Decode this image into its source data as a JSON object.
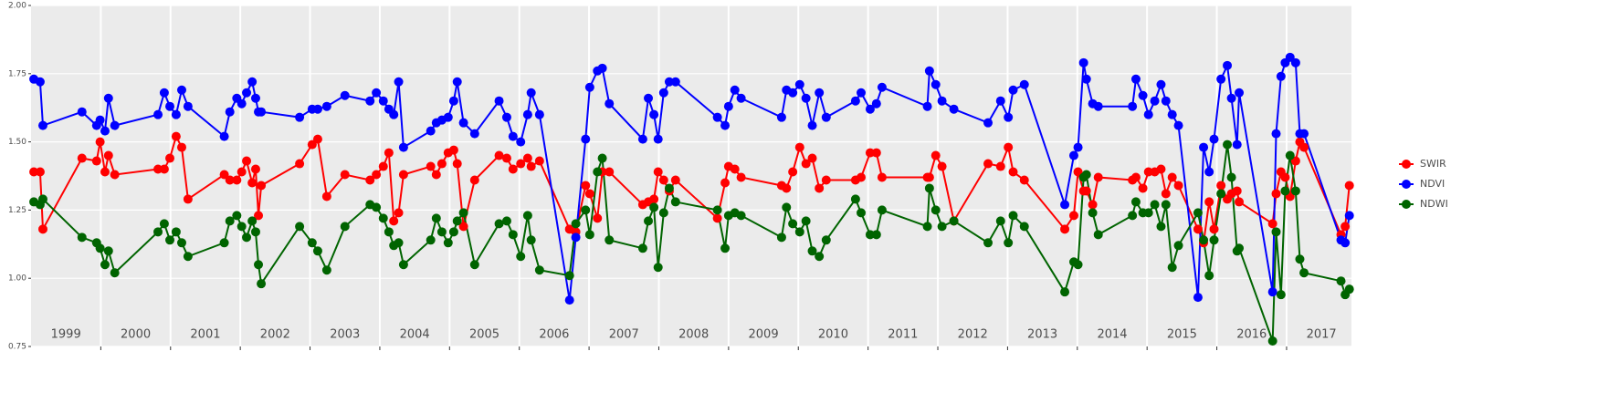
{
  "chart_data": {
    "type": "line",
    "x": [
      1999.04,
      1999.13,
      1999.17,
      1999.73,
      1999.94,
      1999.99,
      2000.06,
      2000.11,
      2000.2,
      2000.82,
      2000.91,
      2000.99,
      2001.08,
      2001.16,
      2001.25,
      2001.77,
      2001.85,
      2001.95,
      2002.02,
      2002.09,
      2002.17,
      2002.22,
      2002.26,
      2002.3,
      2002.85,
      2003.03,
      2003.11,
      2003.24,
      2003.5,
      2003.86,
      2003.95,
      2004.05,
      2004.13,
      2004.2,
      2004.27,
      2004.34,
      2004.73,
      2004.81,
      2004.89,
      2004.98,
      2005.06,
      2005.11,
      2005.2,
      2005.36,
      2005.71,
      2005.82,
      2005.91,
      2006.02,
      2006.12,
      2006.17,
      2006.29,
      2006.72,
      2006.81,
      2006.95,
      2007.01,
      2007.12,
      2007.19,
      2007.29,
      2007.77,
      2007.85,
      2007.93,
      2007.99,
      2008.07,
      2008.15,
      2008.24,
      2008.84,
      2008.95,
      2009.0,
      2009.09,
      2009.18,
      2009.76,
      2009.83,
      2009.92,
      2010.02,
      2010.11,
      2010.2,
      2010.3,
      2010.4,
      2010.82,
      2010.9,
      2011.03,
      2011.12,
      2011.2,
      2011.85,
      2011.88,
      2011.97,
      2012.06,
      2012.23,
      2012.72,
      2012.9,
      2013.01,
      2013.08,
      2013.24,
      2013.82,
      2013.95,
      2014.01,
      2014.09,
      2014.13,
      2014.22,
      2014.3,
      2014.79,
      2014.84,
      2014.94,
      2015.02,
      2015.11,
      2015.2,
      2015.27,
      2015.36,
      2015.45,
      2015.73,
      2015.81,
      2015.89,
      2015.96,
      2016.06,
      2016.15,
      2016.21,
      2016.29,
      2016.32,
      2016.8,
      2016.85,
      2016.92,
      2016.98,
      2017.05,
      2017.13,
      2017.19,
      2017.25,
      2017.78,
      2017.84,
      2017.9
    ],
    "series": [
      {
        "name": "SWIR",
        "color": "#ff0000",
        "values": [
          1.39,
          1.39,
          1.18,
          1.44,
          1.43,
          1.5,
          1.39,
          1.45,
          1.38,
          1.4,
          1.4,
          1.44,
          1.52,
          1.48,
          1.29,
          1.38,
          1.36,
          1.36,
          1.39,
          1.43,
          1.35,
          1.4,
          1.23,
          1.34,
          1.42,
          1.49,
          1.51,
          1.3,
          1.38,
          1.36,
          1.38,
          1.41,
          1.46,
          1.21,
          1.24,
          1.38,
          1.41,
          1.38,
          1.42,
          1.46,
          1.47,
          1.42,
          1.19,
          1.36,
          1.45,
          1.44,
          1.4,
          1.42,
          1.44,
          1.41,
          1.43,
          1.18,
          1.17,
          1.34,
          1.31,
          1.22,
          1.39,
          1.39,
          1.27,
          1.28,
          1.29,
          1.39,
          1.36,
          1.32,
          1.36,
          1.22,
          1.35,
          1.41,
          1.4,
          1.37,
          1.34,
          1.33,
          1.39,
          1.48,
          1.42,
          1.44,
          1.33,
          1.36,
          1.36,
          1.37,
          1.46,
          1.46,
          1.37,
          1.37,
          1.37,
          1.45,
          1.41,
          1.21,
          1.42,
          1.41,
          1.48,
          1.39,
          1.36,
          1.18,
          1.23,
          1.39,
          1.32,
          1.32,
          1.27,
          1.37,
          1.36,
          1.37,
          1.33,
          1.39,
          1.39,
          1.4,
          1.31,
          1.37,
          1.34,
          1.18,
          1.13,
          1.28,
          1.18,
          1.34,
          1.29,
          1.31,
          1.32,
          1.28,
          1.2,
          1.31,
          1.39,
          1.37,
          1.3,
          1.43,
          1.5,
          1.48,
          1.16,
          1.19,
          1.34
        ]
      },
      {
        "name": "NDVI",
        "color": "#0000ff",
        "values": [
          1.73,
          1.72,
          1.56,
          1.61,
          1.56,
          1.58,
          1.54,
          1.66,
          1.56,
          1.6,
          1.68,
          1.63,
          1.6,
          1.69,
          1.63,
          1.52,
          1.61,
          1.66,
          1.64,
          1.68,
          1.72,
          1.66,
          1.61,
          1.61,
          1.59,
          1.62,
          1.62,
          1.63,
          1.67,
          1.65,
          1.68,
          1.65,
          1.62,
          1.6,
          1.72,
          1.48,
          1.54,
          1.57,
          1.58,
          1.59,
          1.65,
          1.72,
          1.57,
          1.53,
          1.65,
          1.59,
          1.52,
          1.5,
          1.6,
          1.68,
          1.6,
          0.92,
          1.15,
          1.51,
          1.7,
          1.76,
          1.77,
          1.64,
          1.51,
          1.66,
          1.6,
          1.51,
          1.68,
          1.72,
          1.72,
          1.59,
          1.56,
          1.63,
          1.69,
          1.66,
          1.59,
          1.69,
          1.68,
          1.71,
          1.66,
          1.56,
          1.68,
          1.59,
          1.65,
          1.68,
          1.62,
          1.64,
          1.7,
          1.63,
          1.76,
          1.71,
          1.65,
          1.62,
          1.57,
          1.65,
          1.59,
          1.69,
          1.71,
          1.27,
          1.45,
          1.48,
          1.79,
          1.73,
          1.64,
          1.63,
          1.63,
          1.73,
          1.67,
          1.6,
          1.65,
          1.71,
          1.65,
          1.6,
          1.56,
          0.93,
          1.48,
          1.39,
          1.51,
          1.73,
          1.78,
          1.66,
          1.49,
          1.68,
          0.95,
          1.53,
          1.74,
          1.79,
          1.81,
          1.79,
          1.53,
          1.53,
          1.14,
          1.13,
          1.23
        ]
      },
      {
        "name": "NDWI",
        "color": "#006400",
        "values": [
          1.28,
          1.27,
          1.29,
          1.15,
          1.13,
          1.11,
          1.05,
          1.1,
          1.02,
          1.17,
          1.2,
          1.14,
          1.17,
          1.13,
          1.08,
          1.13,
          1.21,
          1.23,
          1.19,
          1.15,
          1.21,
          1.17,
          1.05,
          0.98,
          1.19,
          1.13,
          1.1,
          1.03,
          1.19,
          1.27,
          1.26,
          1.22,
          1.17,
          1.12,
          1.13,
          1.05,
          1.14,
          1.22,
          1.17,
          1.13,
          1.17,
          1.21,
          1.24,
          1.05,
          1.2,
          1.21,
          1.16,
          1.08,
          1.23,
          1.14,
          1.03,
          1.01,
          1.2,
          1.25,
          1.16,
          1.39,
          1.44,
          1.14,
          1.11,
          1.21,
          1.26,
          1.04,
          1.24,
          1.33,
          1.28,
          1.25,
          1.11,
          1.23,
          1.24,
          1.23,
          1.15,
          1.26,
          1.2,
          1.17,
          1.21,
          1.1,
          1.08,
          1.14,
          1.29,
          1.24,
          1.16,
          1.16,
          1.25,
          1.19,
          1.33,
          1.25,
          1.19,
          1.21,
          1.13,
          1.21,
          1.13,
          1.23,
          1.19,
          0.95,
          1.06,
          1.05,
          1.37,
          1.38,
          1.24,
          1.16,
          1.23,
          1.28,
          1.24,
          1.24,
          1.27,
          1.19,
          1.27,
          1.04,
          1.12,
          1.24,
          1.14,
          1.01,
          1.14,
          1.31,
          1.49,
          1.37,
          1.1,
          1.11,
          0.77,
          1.17,
          0.94,
          1.32,
          1.45,
          1.32,
          1.07,
          1.02,
          0.99,
          0.94,
          0.96
        ]
      }
    ],
    "xlim": [
      1999,
      2017.93
    ],
    "xticks": [
      {
        "value": 1999.5,
        "label": "1999"
      },
      {
        "value": 2000.5,
        "label": "2000"
      },
      {
        "value": 2001.5,
        "label": "2001"
      },
      {
        "value": 2002.5,
        "label": "2002"
      },
      {
        "value": 2003.5,
        "label": "2003"
      },
      {
        "value": 2004.5,
        "label": "2004"
      },
      {
        "value": 2005.5,
        "label": "2005"
      },
      {
        "value": 2006.5,
        "label": "2006"
      },
      {
        "value": 2007.5,
        "label": "2007"
      },
      {
        "value": 2008.5,
        "label": "2008"
      },
      {
        "value": 2009.5,
        "label": "2009"
      },
      {
        "value": 2010.5,
        "label": "2010"
      },
      {
        "value": 2011.5,
        "label": "2011"
      },
      {
        "value": 2012.5,
        "label": "2012"
      },
      {
        "value": 2013.5,
        "label": "2013"
      },
      {
        "value": 2014.5,
        "label": "2014"
      },
      {
        "value": 2015.5,
        "label": "2015"
      },
      {
        "value": 2016.5,
        "label": "2016"
      },
      {
        "value": 2017.5,
        "label": "2017"
      }
    ],
    "xgrid": [
      2000,
      2001,
      2002,
      2003,
      2004,
      2005,
      2006,
      2007,
      2008,
      2009,
      2010,
      2011,
      2012,
      2013,
      2014,
      2015,
      2016,
      2017
    ],
    "ylim": [
      0.75,
      2.0
    ],
    "yticks": [
      {
        "value": 0.75,
        "label": "0.75"
      },
      {
        "value": 1.0,
        "label": "1.00"
      },
      {
        "value": 1.25,
        "label": "1.25"
      },
      {
        "value": 1.5,
        "label": "1.50"
      },
      {
        "value": 1.75,
        "label": "1.75"
      },
      {
        "value": 2.0,
        "label": "2.00"
      }
    ],
    "grid": true,
    "legend": "right"
  }
}
